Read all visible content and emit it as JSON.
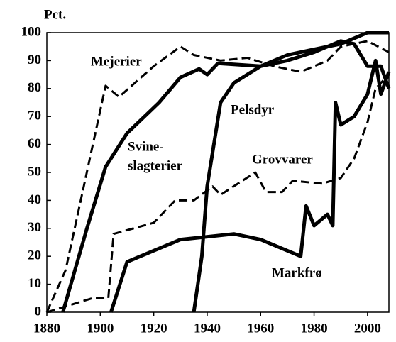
{
  "chart_data": {
    "type": "line",
    "y_label": "Pct.",
    "annotations": [
      "Mejerier",
      "Svine-",
      "slagterier",
      "Pelsdyr",
      "Grovvarer",
      "Markfrø"
    ],
    "xlim": [
      1880,
      2008
    ],
    "xticks": [
      1880,
      1900,
      1920,
      1940,
      1960,
      1980,
      2000
    ],
    "ylim": [
      0,
      100
    ],
    "yticks": [
      0,
      10,
      20,
      30,
      40,
      50,
      60,
      70,
      80,
      90,
      100
    ],
    "series": [
      {
        "color": "#000000",
        "dashed": true,
        "width": 3,
        "x": [
          1880,
          1887,
          1902,
          1907,
          1920,
          1930,
          1935,
          1945,
          1955,
          1965,
          1975,
          1985,
          1990,
          2000,
          2008
        ],
        "values": [
          0,
          15,
          81,
          77,
          88,
          95,
          92,
          90,
          91,
          88,
          86,
          90,
          95,
          97,
          93
        ]
      },
      {
        "color": "#000000",
        "dashed": false,
        "width": 5,
        "x": [
          1886,
          1895,
          1902,
          1910,
          1922,
          1930,
          1937,
          1940,
          1944,
          1960,
          1970,
          1980,
          1990,
          2000,
          2008
        ],
        "values": [
          0,
          30,
          52,
          64,
          75,
          84,
          87,
          85,
          89,
          88,
          92,
          94,
          96,
          100,
          100
        ]
      },
      {
        "color": "#000000",
        "dashed": false,
        "width": 5,
        "x": [
          1935,
          1938,
          1940,
          1945,
          1950,
          1960,
          1970,
          1980,
          1985,
          1990,
          1995,
          2000,
          2005,
          2008
        ],
        "values": [
          0,
          20,
          45,
          75,
          82,
          88,
          90,
          93,
          95,
          97,
          96,
          88,
          88,
          80
        ]
      },
      {
        "color": "#000000",
        "dashed": true,
        "width": 3,
        "x": [
          1880,
          1897,
          1903,
          1905,
          1920,
          1928,
          1935,
          1942,
          1945,
          1958,
          1962,
          1968,
          1972,
          1983,
          1990,
          1995,
          2000,
          2003,
          2008
        ],
        "values": [
          0,
          5,
          5,
          28,
          32,
          40,
          40,
          45,
          42,
          50,
          43,
          43,
          47,
          46,
          48,
          55,
          68,
          80,
          85
        ]
      },
      {
        "color": "#000000",
        "dashed": false,
        "width": 5,
        "x": [
          1904,
          1910,
          1920,
          1930,
          1950,
          1960,
          1975,
          1977,
          1980,
          1985,
          1987,
          1988,
          1990,
          1995,
          2000,
          2003,
          2005,
          2008
        ],
        "values": [
          0,
          18,
          22,
          26,
          28,
          26,
          20,
          38,
          31,
          35,
          31,
          75,
          67,
          70,
          78,
          90,
          78,
          86
        ]
      }
    ]
  }
}
